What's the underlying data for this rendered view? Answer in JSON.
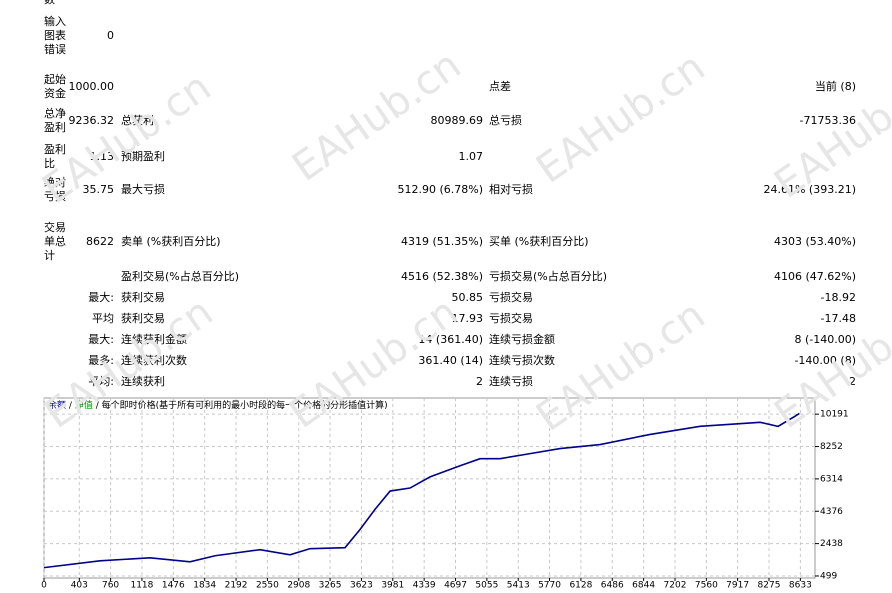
{
  "top_fragment": "数",
  "watermark": "EAHub.cn",
  "table": {
    "rows": [
      [
        "输入图表错误",
        "0",
        null,
        null,
        null,
        null
      ],
      [
        "起始资金",
        "1000.00",
        null,
        null,
        "点差",
        "当前 (8)"
      ],
      [
        "总净盈利",
        "9236.32",
        "总获利",
        "80989.69",
        "总亏损",
        "-71753.36"
      ],
      [
        "盈利比",
        "1.13",
        "预期盈利",
        "1.07",
        null,
        null
      ],
      [
        "绝对亏损",
        "35.75",
        "最大亏损",
        "512.90 (6.78%)",
        "相对亏损",
        "24.61% (393.21)"
      ],
      [
        "交易单总计",
        "8622",
        "卖单 (%获利百分比)",
        "4319 (51.35%)",
        "买单 (%获利百分比)",
        "4303 (53.40%)"
      ],
      [
        null,
        null,
        "盈利交易(%占总百分比)",
        "4516 (52.38%)",
        "亏损交易(%占总百分比)",
        "4106 (47.62%)"
      ],
      [
        null,
        "最大:",
        "获利交易",
        "50.85",
        "亏损交易",
        "-18.92"
      ],
      [
        null,
        "平均",
        "获利交易",
        "17.93",
        "亏损交易",
        "-17.48"
      ],
      [
        null,
        "最大:",
        "连续获利金额",
        "14 (361.40)",
        "连续亏损金额",
        "8 (-140.00)"
      ],
      [
        null,
        "最多:",
        "连续获利次数",
        "361.40 (14)",
        "连续亏损次数",
        "-140.00 (8)"
      ],
      [
        null,
        "平均:",
        "连续获利",
        "2",
        "连续亏损",
        "2"
      ]
    ]
  },
  "chart_data": {
    "type": "line",
    "legend_separator": "/",
    "equity_label": "净值",
    "equity_color": "#009900",
    "note": "每个即时价格(基于所有可利用的最小时段的每一个价格的分形插值计算)",
    "x": [
      0,
      639,
      1210,
      1667,
      1952,
      2466,
      2808,
      3037,
      3436,
      3607,
      3779,
      3950,
      4178,
      4406,
      4749,
      4977,
      5205,
      5548,
      5890,
      6347,
      6918,
      7489,
      8174,
      8379,
      8573,
      8622
    ],
    "series": [
      {
        "name": "余额",
        "color": "#00008b",
        "values": [
          1000,
          1407,
          1589,
          1347,
          1710,
          2074,
          1771,
          2135,
          2195,
          3285,
          4496,
          5586,
          5768,
          6434,
          7100,
          7524,
          7524,
          7827,
          8130,
          8372,
          8978,
          9462,
          9705,
          9462,
          10068,
          10236
        ]
      }
    ],
    "xlim": [
      0,
      8800
    ],
    "xticks": [
      0,
      403,
      760,
      1118,
      1476,
      1834,
      2192,
      2550,
      2908,
      3265,
      3623,
      3981,
      4339,
      4697,
      5055,
      5413,
      5770,
      6128,
      6486,
      6844,
      7202,
      7560,
      7917,
      8275,
      8633
    ],
    "ylim": [
      378,
      11160
    ],
    "yticks": [
      499,
      2438,
      4376,
      6314,
      8252,
      10191
    ],
    "grid": true
  }
}
